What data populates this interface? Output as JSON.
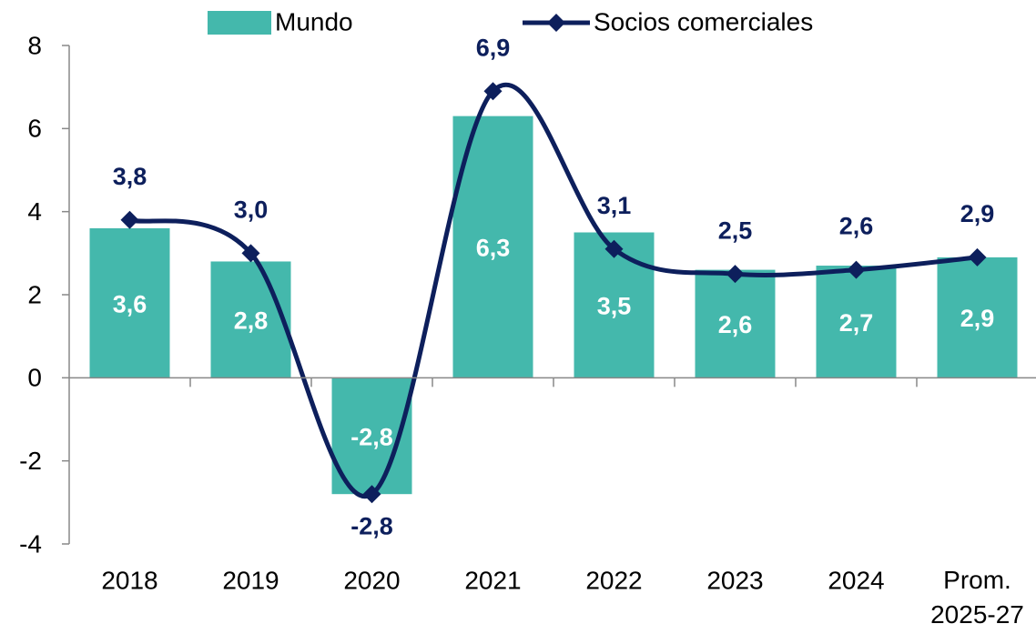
{
  "chart_data": {
    "type": "bar_line",
    "categories": [
      "2018",
      "2019",
      "2020",
      "2021",
      "2022",
      "2023",
      "2024",
      "Prom. 2025-27"
    ],
    "series": [
      {
        "name": "Mundo",
        "type": "bar",
        "color": "#44b8ac",
        "values": [
          3.6,
          2.8,
          -2.8,
          6.3,
          3.5,
          2.6,
          2.7,
          2.9
        ],
        "value_labels": [
          "3,6",
          "2,8",
          "-2,8",
          "6,3",
          "3,5",
          "2,6",
          "2,7",
          "2,9"
        ]
      },
      {
        "name": "Socios comerciales",
        "type": "line",
        "color": "#0d1f5c",
        "values": [
          3.8,
          3.0,
          -2.8,
          6.9,
          3.1,
          2.5,
          2.6,
          2.9
        ],
        "value_labels": [
          "3,8",
          "3,0",
          "-2,8",
          "6,9",
          "3,1",
          "2,5",
          "2,6",
          "2,9"
        ]
      }
    ],
    "ylim": [
      -4,
      8
    ],
    "yticks": [
      -4,
      -2,
      0,
      2,
      4,
      6,
      8
    ],
    "grid": false
  }
}
